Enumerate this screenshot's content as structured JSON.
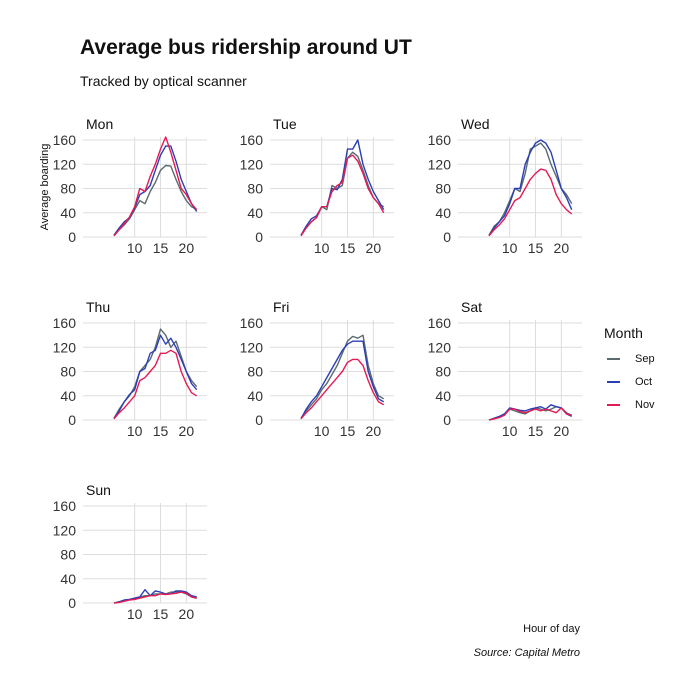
{
  "title": "Average bus ridership around UT",
  "subtitle": "Tracked by optical scanner",
  "xlabel": "Hour of day",
  "caption": "Source: Capital Metro",
  "chart_data": {
    "type": "line",
    "title": "Average bus ridership around UT",
    "subtitle": "Tracked by optical scanner",
    "xlabel": "Hour of day",
    "ylabel": "Average boarding",
    "xlim": [
      0,
      24
    ],
    "ylim": [
      0,
      165
    ],
    "x_ticks": [
      10,
      15,
      20
    ],
    "y_ticks": [
      0,
      40,
      80,
      120,
      160
    ],
    "grid": true,
    "legend": {
      "title": "Month",
      "position": "right",
      "entries": [
        "Sep",
        "Oct",
        "Nov"
      ]
    },
    "colors": {
      "Sep": "#5a6b70",
      "Oct": "#2b3fb5",
      "Nov": "#e41a55"
    },
    "x": [
      6,
      7,
      8,
      9,
      10,
      11,
      12,
      13,
      14,
      15,
      16,
      17,
      18,
      19,
      20,
      21,
      22
    ],
    "panels": [
      {
        "day": "Mon",
        "series": [
          {
            "name": "Sep",
            "values": [
              2,
              12,
              20,
              30,
              45,
              60,
              55,
              75,
              90,
              110,
              118,
              117,
              95,
              75,
              60,
              50,
              45
            ]
          },
          {
            "name": "Oct",
            "values": [
              3,
              15,
              25,
              32,
              48,
              70,
              75,
              85,
              110,
              135,
              150,
              150,
              125,
              95,
              75,
              55,
              42
            ]
          },
          {
            "name": "Nov",
            "values": [
              2,
              12,
              22,
              33,
              50,
              80,
              75,
              100,
              120,
              145,
              165,
              140,
              110,
              80,
              70,
              55,
              45
            ]
          }
        ]
      },
      {
        "day": "Tue",
        "series": [
          {
            "name": "Sep",
            "values": [
              2,
              15,
              25,
              32,
              50,
              45,
              85,
              80,
              85,
              130,
              140,
              133,
              110,
              85,
              65,
              55,
              50
            ]
          },
          {
            "name": "Oct",
            "values": [
              3,
              18,
              30,
              35,
              50,
              50,
              80,
              78,
              95,
              145,
              145,
              160,
              120,
              95,
              75,
              60,
              45
            ]
          },
          {
            "name": "Nov",
            "values": [
              2,
              15,
              25,
              32,
              50,
              50,
              75,
              85,
              90,
              130,
              135,
              125,
              105,
              80,
              65,
              55,
              40
            ]
          }
        ]
      },
      {
        "day": "Wed",
        "series": [
          {
            "name": "Sep",
            "values": [
              3,
              18,
              25,
              40,
              60,
              80,
              75,
              105,
              145,
              150,
              155,
              145,
              120,
              100,
              80,
              70,
              55
            ]
          },
          {
            "name": "Oct",
            "values": [
              2,
              15,
              25,
              35,
              55,
              80,
              80,
              120,
              140,
              155,
              160,
              155,
              140,
              110,
              80,
              65,
              45
            ]
          },
          {
            "name": "Nov",
            "values": [
              2,
              12,
              20,
              30,
              45,
              60,
              65,
              80,
              95,
              105,
              112,
              110,
              95,
              70,
              55,
              45,
              38
            ]
          }
        ]
      },
      {
        "day": "Thu",
        "series": [
          {
            "name": "Sep",
            "values": [
              3,
              18,
              30,
              40,
              55,
              80,
              90,
              100,
              120,
              150,
              140,
              120,
              130,
              105,
              80,
              65,
              55
            ]
          },
          {
            "name": "Oct",
            "values": [
              2,
              15,
              30,
              42,
              50,
              80,
              85,
              110,
              115,
              140,
              125,
              135,
              120,
              100,
              80,
              60,
              50
            ]
          },
          {
            "name": "Nov",
            "values": [
              2,
              12,
              20,
              30,
              40,
              65,
              70,
              80,
              90,
              110,
              110,
              115,
              110,
              80,
              60,
              45,
              40
            ]
          }
        ]
      },
      {
        "day": "Fri",
        "series": [
          {
            "name": "Sep",
            "values": [
              3,
              15,
              25,
              35,
              50,
              60,
              75,
              90,
              110,
              130,
              138,
              135,
              140,
              90,
              60,
              40,
              35
            ]
          },
          {
            "name": "Oct",
            "values": [
              2,
              18,
              30,
              40,
              55,
              70,
              85,
              100,
              115,
              125,
              130,
              130,
              130,
              80,
              55,
              35,
              30
            ]
          },
          {
            "name": "Nov",
            "values": [
              2,
              12,
              20,
              30,
              40,
              50,
              60,
              70,
              80,
              95,
              100,
              100,
              90,
              65,
              45,
              30,
              25
            ]
          }
        ]
      },
      {
        "day": "Sat",
        "series": [
          {
            "name": "Sep",
            "values": [
              0,
              2,
              5,
              10,
              18,
              15,
              12,
              10,
              15,
              20,
              18,
              15,
              18,
              22,
              20,
              12,
              8
            ]
          },
          {
            "name": "Oct",
            "values": [
              0,
              3,
              6,
              10,
              20,
              18,
              16,
              15,
              18,
              20,
              22,
              18,
              25,
              22,
              20,
              10,
              6
            ]
          },
          {
            "name": "Nov",
            "values": [
              0,
              2,
              4,
              8,
              18,
              18,
              14,
              12,
              15,
              18,
              15,
              18,
              15,
              12,
              20,
              10,
              8
            ]
          }
        ]
      },
      {
        "day": "Sun",
        "series": [
          {
            "name": "Sep",
            "values": [
              0,
              2,
              4,
              6,
              8,
              10,
              12,
              12,
              15,
              15,
              15,
              18,
              18,
              18,
              15,
              10,
              8
            ]
          },
          {
            "name": "Oct",
            "values": [
              0,
              2,
              5,
              6,
              8,
              10,
              22,
              12,
              20,
              18,
              15,
              15,
              20,
              20,
              18,
              12,
              10
            ]
          },
          {
            "name": "Nov",
            "values": [
              0,
              1,
              3,
              5,
              6,
              8,
              10,
              12,
              12,
              15,
              14,
              15,
              16,
              18,
              16,
              10,
              8
            ]
          }
        ]
      }
    ]
  }
}
